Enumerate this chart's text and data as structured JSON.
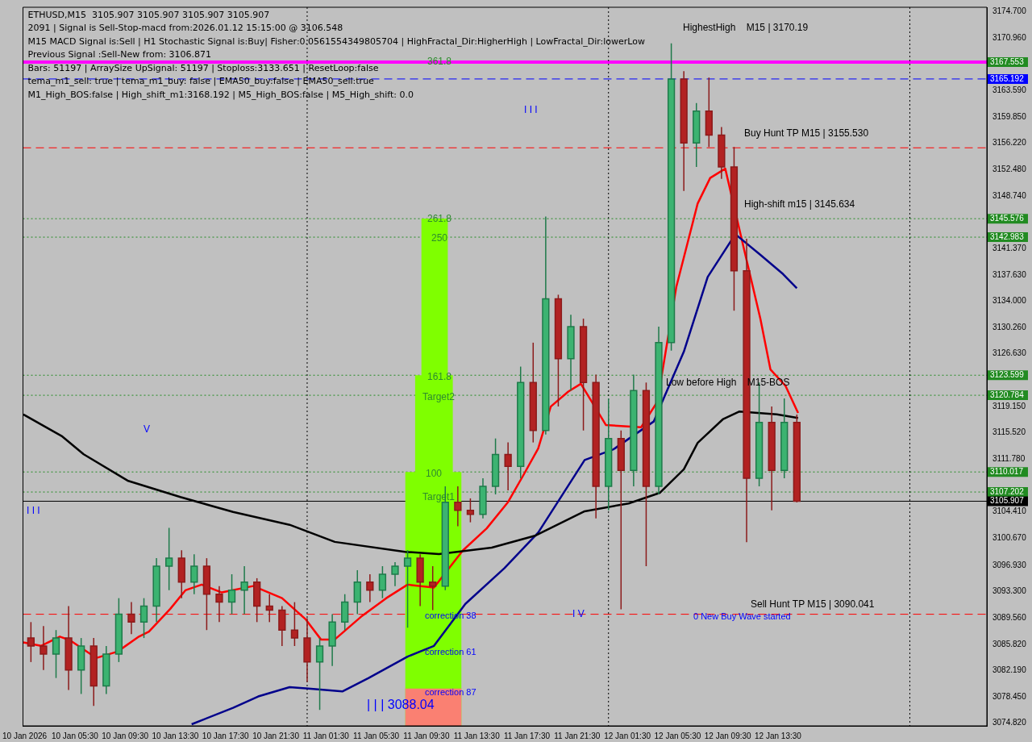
{
  "chart_data": {
    "type": "candlestick",
    "x": [
      "2026-01-10T02:00",
      "2026-01-10T03:00",
      "2026-01-10T04:00",
      "2026-01-10T05:00",
      "2026-01-10T06:00",
      "2026-01-10T07:00",
      "2026-01-10T08:00",
      "2026-01-10T09:00",
      "2026-01-10T10:00",
      "2026-01-10T11:00",
      "2026-01-10T12:00",
      "2026-01-10T13:00",
      "2026-01-10T14:00",
      "2026-01-10T15:00",
      "2026-01-10T16:00",
      "2026-01-10T17:00",
      "2026-01-10T18:00",
      "2026-01-10T19:00",
      "2026-01-10T20:00",
      "2026-01-10T21:00",
      "2026-01-10T22:00",
      "2026-01-10T23:00",
      "2026-01-11T00:00",
      "2026-01-11T01:00",
      "2026-01-11T02:00",
      "2026-01-11T03:00",
      "2026-01-11T04:00",
      "2026-01-11T05:00",
      "2026-01-11T06:00",
      "2026-01-11T07:00",
      "2026-01-11T08:00",
      "2026-01-11T09:00",
      "2026-01-11T10:00",
      "2026-01-11T11:00",
      "2026-01-11T12:00",
      "2026-01-11T13:00",
      "2026-01-11T14:00",
      "2026-01-11T15:00",
      "2026-01-11T16:00",
      "2026-01-11T17:00",
      "2026-01-11T18:00",
      "2026-01-11T19:00",
      "2026-01-11T20:00",
      "2026-01-11T21:00",
      "2026-01-11T22:00",
      "2026-01-11T23:00",
      "2026-01-12T00:00",
      "2026-01-12T01:00",
      "2026-01-12T02:00",
      "2026-01-12T03:00",
      "2026-01-12T04:00",
      "2026-01-12T05:00",
      "2026-01-12T06:00",
      "2026-01-12T07:00",
      "2026-01-12T08:00",
      "2026-01-12T09:00",
      "2026-01-12T10:00",
      "2026-01-12T11:00",
      "2026-01-12T12:00",
      "2026-01-12T13:00",
      "2026-01-12T14:00",
      "2026-01-12T15:00"
    ],
    "ohlc": [
      [
        3086.7,
        3088.94,
        3083.33,
        3085.58
      ],
      [
        3085.58,
        3088.38,
        3082.21,
        3084.45
      ],
      [
        3084.45,
        3087.82,
        3081.09,
        3086.7
      ],
      [
        3086.7,
        3091.18,
        3079.41,
        3082.21
      ],
      [
        3082.21,
        3086.7,
        3078.85,
        3085.58
      ],
      [
        3085.58,
        3086.7,
        3077.17,
        3079.97
      ],
      [
        3079.97,
        3085.58,
        3078.85,
        3084.45
      ],
      [
        3084.45,
        3092.3,
        3083.33,
        3090.06
      ],
      [
        3090.06,
        3091.74,
        3087.26,
        3088.94
      ],
      [
        3088.94,
        3092.3,
        3086.7,
        3091.18
      ],
      [
        3091.18,
        3097.91,
        3088.94,
        3096.79
      ],
      [
        3096.79,
        3102.17,
        3093.42,
        3097.91
      ],
      [
        3097.91,
        3099.03,
        3092.3,
        3094.54
      ],
      [
        3094.54,
        3098.47,
        3092.86,
        3096.79
      ],
      [
        3096.79,
        3097.91,
        3087.82,
        3092.86
      ],
      [
        3092.86,
        3093.98,
        3088.94,
        3091.74
      ],
      [
        3091.74,
        3095.66,
        3090.06,
        3093.42
      ],
      [
        3093.42,
        3096.79,
        3090.06,
        3094.54
      ],
      [
        3094.54,
        3095.1,
        3088.94,
        3091.18
      ],
      [
        3091.18,
        3092.86,
        3088.94,
        3090.62
      ],
      [
        3090.62,
        3091.18,
        3085.58,
        3087.82
      ],
      [
        3087.82,
        3091.74,
        3085.58,
        3086.7
      ],
      [
        3086.7,
        3089.5,
        3080.53,
        3083.33
      ],
      [
        3083.33,
        3086.7,
        3076.61,
        3085.58
      ],
      [
        3085.58,
        3090.06,
        3082.77,
        3088.94
      ],
      [
        3088.94,
        3092.86,
        3087.82,
        3091.74
      ],
      [
        3091.74,
        3096.23,
        3090.06,
        3094.54
      ],
      [
        3094.54,
        3095.66,
        3091.74,
        3093.42
      ],
      [
        3093.42,
        3096.79,
        3092.3,
        3095.66
      ],
      [
        3095.66,
        3097.35,
        3093.98,
        3096.79
      ],
      [
        3096.79,
        3099.03,
        3088.15,
        3097.91
      ],
      [
        3097.91,
        3098.47,
        3091.18,
        3094.54
      ],
      [
        3094.54,
        3096.79,
        3090.62,
        3093.98
      ],
      [
        3093.98,
        3108.0,
        3093.42,
        3105.75
      ],
      [
        3105.75,
        3108.0,
        3102.39,
        3104.63
      ],
      [
        3104.63,
        3106.31,
        3102.95,
        3104.07
      ],
      [
        3104.07,
        3109.12,
        3103.51,
        3108.0
      ],
      [
        3108.0,
        3114.72,
        3106.87,
        3112.48
      ],
      [
        3112.48,
        3114.16,
        3107.43,
        3110.8
      ],
      [
        3110.8,
        3124.81,
        3109.12,
        3122.57
      ],
      [
        3122.57,
        3128.17,
        3114.16,
        3115.84
      ],
      [
        3115.84,
        3145.89,
        3115.28,
        3134.34
      ],
      [
        3134.34,
        3134.9,
        3119.21,
        3125.93
      ],
      [
        3125.93,
        3132.1,
        3121.45,
        3130.42
      ],
      [
        3130.42,
        3131.54,
        3115.84,
        3122.57
      ],
      [
        3122.57,
        3123.69,
        3103.51,
        3108.0
      ],
      [
        3108.0,
        3120.33,
        3104.63,
        3114.72
      ],
      [
        3114.72,
        3115.84,
        3090.73,
        3110.24
      ],
      [
        3110.24,
        3123.69,
        3108.0,
        3121.45
      ],
      [
        3121.45,
        3122.57,
        3096.79,
        3108.0
      ],
      [
        3108.0,
        3130.42,
        3106.87,
        3128.17
      ],
      [
        3128.17,
        3170.19,
        3127.05,
        3165.17
      ],
      [
        3165.17,
        3166.29,
        3149.47,
        3156.2
      ],
      [
        3156.2,
        3161.81,
        3152.84,
        3160.69
      ],
      [
        3160.69,
        3165.39,
        3155.64,
        3157.32
      ],
      [
        3157.32,
        3158.44,
        3151.16,
        3152.84
      ],
      [
        3152.84,
        3155.64,
        3132.66,
        3138.26
      ],
      [
        3138.26,
        3142.75,
        3100.15,
        3109.12
      ],
      [
        3109.12,
        3122.57,
        3108.0,
        3116.96
      ],
      [
        3116.96,
        3119.21,
        3104.63,
        3110.24
      ],
      [
        3110.24,
        3120.33,
        3109.12,
        3116.96
      ],
      [
        3116.96,
        3118.08,
        3105.75,
        3105.907
      ]
    ],
    "series": [
      {
        "type": "area",
        "color": "#fa8072",
        "x": [
          "2026-01-11T07:48",
          "2026-01-11T12:18"
        ],
        "values": [
          3079.6,
          3079.6
        ]
      },
      {
        "type": "area",
        "color": "#7fff00",
        "x": [
          "2026-01-11T07:48",
          "2026-01-11T08:36",
          "2026-01-11T08:36",
          "2026-01-11T09:06",
          "2026-01-11T09:06",
          "2026-01-11T11:12",
          "2026-01-11T11:12",
          "2026-01-11T11:36",
          "2026-01-11T11:36",
          "2026-01-11T12:18"
        ],
        "values": [
          3110.0,
          3110.0,
          3123.6,
          3123.6,
          3145.6,
          3145.6,
          3123.6,
          3123.6,
          3110.0,
          3110.0
        ]
      },
      {
        "type": "line",
        "color": "#000000",
        "x": [
          "2026-01-10T01:24",
          "2026-01-10T04:30",
          "2026-01-10T06:12",
          "2026-01-10T09:42",
          "2026-01-10T13:54",
          "2026-01-10T18:06",
          "2026-01-10T22:36",
          "2026-01-11T02:12",
          "2026-01-11T07:48",
          "2026-01-11T10:30",
          "2026-01-11T14:42",
          "2026-01-11T18:12",
          "2026-01-11T22:06",
          "2026-01-12T01:36",
          "2026-01-12T04:06",
          "2026-01-12T06:00",
          "2026-01-12T07:06",
          "2026-01-12T09:06",
          "2026-01-12T10:24",
          "2026-01-12T13:24",
          "2026-01-12T15:06"
        ],
        "values": [
          3118.1,
          3115.0,
          3112.5,
          3108.8,
          3106.5,
          3104.4,
          3102.6,
          3100.2,
          3098.8,
          3098.5,
          3099.4,
          3101.1,
          3104.5,
          3105.6,
          3107.1,
          3110.4,
          3114.1,
          3117.4,
          3118.5,
          3118.1,
          3117.6
        ]
      },
      {
        "type": "line",
        "color": "#00008b",
        "x": [
          "2026-01-10T14:48",
          "2026-01-10T18:06",
          "2026-01-10T20:06",
          "2026-01-10T22:36",
          "2026-01-11T00:06",
          "2026-01-11T02:48",
          "2026-01-11T04:54",
          "2026-01-11T08:00",
          "2026-01-11T10:06",
          "2026-01-11T12:36",
          "2026-01-11T15:42",
          "2026-01-11T18:24",
          "2026-01-11T22:06",
          "2026-01-12T00:24",
          "2026-01-12T03:36",
          "2026-01-12T06:00",
          "2026-01-12T07:54",
          "2026-01-12T10:06",
          "2026-01-12T12:06",
          "2026-01-12T13:54",
          "2026-01-12T15:00"
        ],
        "values": [
          3074.6,
          3076.9,
          3078.5,
          3079.8,
          3079.6,
          3079.2,
          3081.1,
          3084.1,
          3085.6,
          3091.5,
          3096.5,
          3101.5,
          3111.7,
          3113.2,
          3117.1,
          3126.9,
          3137.4,
          3143.4,
          3140.5,
          3137.8,
          3135.8
        ]
      },
      {
        "type": "line",
        "color": "#ff0000",
        "x": [
          "2026-01-10T01:24",
          "2026-01-10T02:48",
          "2026-01-10T04:18",
          "2026-01-10T05:06",
          "2026-01-10T07:12",
          "2026-01-10T08:54",
          "2026-01-10T10:36",
          "2026-01-10T11:24",
          "2026-01-10T13:06",
          "2026-01-10T14:18",
          "2026-01-10T15:36",
          "2026-01-10T17:12",
          "2026-01-10T19:42",
          "2026-01-10T22:00",
          "2026-01-10T23:54",
          "2026-01-11T01:06",
          "2026-01-11T02:12",
          "2026-01-11T04:18",
          "2026-01-11T06:18",
          "2026-01-11T08:00",
          "2026-01-11T10:06",
          "2026-01-11T12:24",
          "2026-01-11T14:18",
          "2026-01-11T16:00",
          "2026-01-11T17:12",
          "2026-01-11T18:24",
          "2026-01-11T19:24",
          "2026-01-11T20:48",
          "2026-01-11T21:48",
          "2026-01-11T23:48",
          "2026-01-12T01:12",
          "2026-01-12T02:36",
          "2026-01-12T03:54",
          "2026-01-12T05:24",
          "2026-01-12T07:06",
          "2026-01-12T08:06",
          "2026-01-12T09:18",
          "2026-01-12T10:06",
          "2026-01-12T10:54",
          "2026-01-12T12:06",
          "2026-01-12T12:54",
          "2026-01-12T14:06",
          "2026-01-12T15:06"
        ],
        "values": [
          3086.1,
          3085.6,
          3086.9,
          3086.4,
          3083.9,
          3084.8,
          3086.9,
          3087.6,
          3090.8,
          3093.4,
          3094.2,
          3093.1,
          3094.0,
          3092.3,
          3089.3,
          3086.5,
          3086.5,
          3089.7,
          3092.3,
          3094.2,
          3093.8,
          3099.0,
          3102.1,
          3105.8,
          3109.5,
          3113.3,
          3119.2,
          3121.3,
          3122.4,
          3116.6,
          null,
          3116.3,
          3119.9,
          3136.0,
          3147.7,
          3151.3,
          3152.6,
          null,
          3140.5,
          3131.5,
          3124.4,
          3122.1,
          3118.3
        ]
      }
    ],
    "xlim": [
      "2026-01-10T01:22",
      "2026-01-13T06:08"
    ],
    "xticks": [
      {
        "value": "2026-01-10T01:30",
        "label": "10 Jan 2026"
      },
      {
        "value": "2026-01-10T05:30",
        "label": "10 Jan 05:30"
      },
      {
        "value": "2026-01-10T09:30",
        "label": "10 Jan 09:30"
      },
      {
        "value": "2026-01-10T13:30",
        "label": "10 Jan 13:30"
      },
      {
        "value": "2026-01-10T17:30",
        "label": "10 Jan 17:30"
      },
      {
        "value": "2026-01-10T21:30",
        "label": "10 Jan 21:30"
      },
      {
        "value": "2026-01-11T01:30",
        "label": "11 Jan 01:30"
      },
      {
        "value": "2026-01-11T05:30",
        "label": "11 Jan 05:30"
      },
      {
        "value": "2026-01-11T09:30",
        "label": "11 Jan 09:30"
      },
      {
        "value": "2026-01-11T13:30",
        "label": "11 Jan 13:30"
      },
      {
        "value": "2026-01-11T17:30",
        "label": "11 Jan 17:30"
      },
      {
        "value": "2026-01-11T21:30",
        "label": "11 Jan 21:30"
      },
      {
        "value": "2026-01-12T01:30",
        "label": "12 Jan 01:30"
      },
      {
        "value": "2026-01-12T05:30",
        "label": "12 Jan 05:30"
      },
      {
        "value": "2026-01-12T09:30",
        "label": "12 Jan 09:30"
      },
      {
        "value": "2026-01-12T13:30",
        "label": "12 Jan 13:30"
      }
    ],
    "ylim": [
      3074.37,
      3175.26
    ],
    "yticks": [
      {
        "value": 3174.7,
        "label": "3174.700"
      },
      {
        "value": 3170.96,
        "label": "3170.960"
      },
      {
        "value": 3163.59,
        "label": "3163.590"
      },
      {
        "value": 3159.85,
        "label": "3159.850"
      },
      {
        "value": 3156.22,
        "label": "3156.220"
      },
      {
        "value": 3152.48,
        "label": "3152.480"
      },
      {
        "value": 3148.74,
        "label": "3148.740"
      },
      {
        "value": 3141.37,
        "label": "3141.370"
      },
      {
        "value": 3137.63,
        "label": "3137.630"
      },
      {
        "value": 3134,
        "label": "3134.000"
      },
      {
        "value": 3130.26,
        "label": "3130.260"
      },
      {
        "value": 3126.63,
        "label": "3126.630"
      },
      {
        "value": 3119.15,
        "label": "3119.150"
      },
      {
        "value": 3115.52,
        "label": "3115.520"
      },
      {
        "value": 3111.78,
        "label": "3111.780"
      },
      {
        "value": 3104.41,
        "label": "3104.410"
      },
      {
        "value": 3100.67,
        "label": "3100.670"
      },
      {
        "value": 3096.93,
        "label": "3096.930"
      },
      {
        "value": 3093.3,
        "label": "3093.300"
      },
      {
        "value": 3089.56,
        "label": "3089.560"
      },
      {
        "value": 3085.82,
        "label": "3085.820"
      },
      {
        "value": 3082.19,
        "label": "3082.190"
      },
      {
        "value": 3078.45,
        "label": "3078.450"
      },
      {
        "value": 3074.82,
        "label": "3074.820"
      }
    ],
    "ref_lines": [
      {
        "axis": "y",
        "value": 3167.553,
        "label": "3167.553",
        "color": "#ff00ff",
        "line_style": "solid"
      },
      {
        "axis": "y",
        "value": 3165.192,
        "label": "3165.192",
        "color": "#0000ff",
        "line_style": "dashed"
      },
      {
        "axis": "y",
        "value": 3155.53,
        "color": "#ff0000",
        "line_style": "dashed"
      },
      {
        "axis": "y",
        "value": 3145.576,
        "label": "3145.576",
        "color": "#228b22",
        "line_style": "dotted"
      },
      {
        "axis": "y",
        "value": 3142.983,
        "label": "3142.983",
        "color": "#228b22",
        "line_style": "dotted"
      },
      {
        "axis": "y",
        "value": 3123.599,
        "label": "3123.599",
        "color": "#228b22",
        "line_style": "dotted"
      },
      {
        "axis": "y",
        "value": 3120.784,
        "label": "3120.784",
        "color": "#228b22",
        "line_style": "dotted"
      },
      {
        "axis": "y",
        "value": 3110.017,
        "label": "3110.017",
        "color": "#228b22",
        "line_style": "dotted"
      },
      {
        "axis": "y",
        "value": 3107.202,
        "label": "3107.202",
        "color": "#228b22",
        "line_style": "dotted"
      },
      {
        "axis": "y",
        "value": 3105.907,
        "label": "3105.907",
        "color": "#000000",
        "line_style": "solid"
      },
      {
        "axis": "y",
        "value": 3090.041,
        "color": "#ff0000",
        "line_style": "dashed"
      },
      {
        "axis": "x",
        "value": "2026-01-11T00:00",
        "color": "#000000",
        "line_style": "dotted"
      },
      {
        "axis": "x",
        "value": "2026-01-12T00:00",
        "color": "#000000",
        "line_style": "dotted"
      },
      {
        "axis": "x",
        "value": "2026-01-13T00:00",
        "color": "#000000",
        "line_style": "dotted"
      }
    ],
    "annotations": [
      "ETHUSD,M15  3105.907 3105.907 3105.907 3105.907",
      "2091 | Signal is Sell-Stop-macd from:2026.01.12 15:15:00 @ 3106.548",
      "M15 MACD Signal is:Sell | H1 Stochastic Signal is:Buy| Fisher:0.0561554349805704 | HighFractal_Dir:HigherHigh | LowFractal_Dir:lowerLow",
      "Previous Signal :Sell-New from: 3106.871",
      "Bars: 51197 | ArraySize UpSignal: 51197 | Stoploss:3133.651 | ResetLoop:false",
      "tema_m1_sell: true | tema_m1_buy: false | EMA50_buy:false | EMA50_sell:true",
      "M1_High_BOS:false | High_shift_m1:3168.192 | M5_High_BOS:false | M5_High_shift: 0.0",
      "361.8",
      "261.8",
      "250",
      "161.8",
      "Target2",
      "100",
      "Target1",
      "correction 38",
      "correction 61",
      "correction 87",
      "| | | 3088.04",
      "HighestHigh    M15 | 3170.19",
      "Buy Hunt TP M15 | 3155.530",
      "High-shift m15 | 3145.634",
      "Low before High    M15-BOS",
      "Sell Hunt TP M15 | 3090.041",
      "0 New Buy Wave started",
      "I I I",
      "V",
      "I V",
      "I I I"
    ],
    "legend": false
  }
}
